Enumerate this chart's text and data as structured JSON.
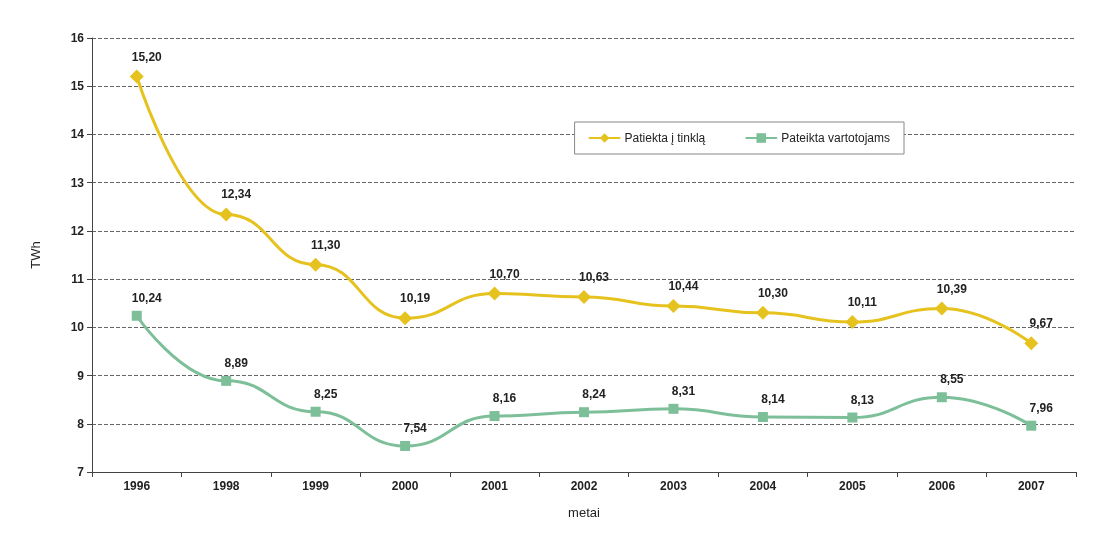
{
  "chart_data": {
    "type": "line",
    "xlabel": "metai",
    "ylabel": "TWh",
    "categories": [
      "1996",
      "1998",
      "1999",
      "2000",
      "2001",
      "2002",
      "2003",
      "2004",
      "2005",
      "2006",
      "2007"
    ],
    "series": [
      {
        "name": "Patiekta į tinklą",
        "color": "#e6c21e",
        "marker": "diamond",
        "values": [
          15.2,
          12.34,
          11.3,
          10.19,
          10.7,
          10.63,
          10.44,
          10.3,
          10.11,
          10.39,
          9.67
        ],
        "value_labels": [
          "15,20",
          "12,34",
          "11,30",
          "10,19",
          "10,70",
          "10,63",
          "10,44",
          "10,30",
          "10,11",
          "10,39",
          "9,67"
        ]
      },
      {
        "name": "Pateikta vartotojams",
        "color": "#7dbf98",
        "marker": "square",
        "values": [
          10.24,
          8.89,
          8.25,
          7.54,
          8.16,
          8.24,
          8.31,
          8.14,
          8.13,
          8.55,
          7.96
        ],
        "value_labels": [
          "10,24",
          "8,89",
          "8,25",
          "7,54",
          "8,16",
          "8,24",
          "8,31",
          "8,14",
          "8,13",
          "8,55",
          "7,96"
        ]
      }
    ],
    "ylim": [
      7,
      16
    ],
    "yticks": [
      7,
      8,
      9,
      10,
      11,
      12,
      13,
      14,
      15,
      16
    ],
    "grid": "y",
    "legend": "top right",
    "line_style": "solid"
  }
}
